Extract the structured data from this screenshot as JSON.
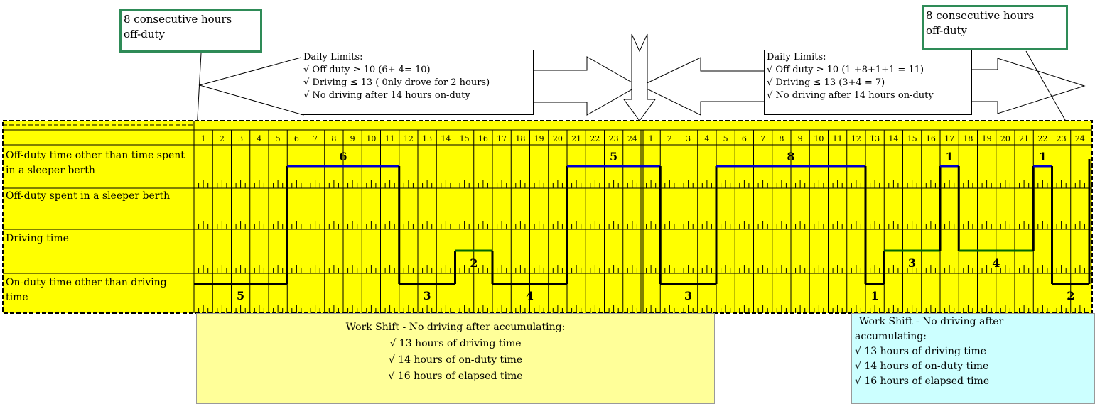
{
  "callouts": {
    "left": {
      "line1": "8 consecutive hours",
      "line2": "off-duty"
    },
    "right": {
      "line1": "8 consecutive hours",
      "line2": "off-duty"
    }
  },
  "limits_left": {
    "title": "Daily Limits:",
    "items": [
      "√ Off-duty ≥ 10 (6+ 4= 10)",
      "√ Driving ≤ 13 ( 0nly drove for 2 hours)",
      "√ No driving after 14 hours on-duty"
    ]
  },
  "limits_right": {
    "title": "Daily Limits:",
    "items": [
      "√ Off-duty ≥ 10 (1 +8+1+1 = 11)",
      "√ Driving ≤ 13 (3+4 = 7)",
      "√ No driving after 14 hours on-duty"
    ]
  },
  "rows": {
    "r1": "Off-duty time other than time spent in a sleeper berth",
    "r2": "Off-duty spent in a sleeper berth",
    "r3": "Driving time",
    "r4": "On-duty time other than driving time"
  },
  "hours": [
    "1",
    "2",
    "3",
    "4",
    "5",
    "6",
    "7",
    "8",
    "9",
    "10",
    "11",
    "12",
    "13",
    "14",
    "15",
    "16",
    "17",
    "18",
    "19",
    "20",
    "21",
    "22",
    "23",
    "24"
  ],
  "segments": [
    {
      "status": "on_duty",
      "start": 0,
      "end": 5,
      "label": "5"
    },
    {
      "status": "off_duty",
      "start": 5,
      "end": 11,
      "label": "6"
    },
    {
      "status": "on_duty",
      "start": 11,
      "end": 14,
      "label": "3"
    },
    {
      "status": "driving",
      "start": 14,
      "end": 16,
      "label": "2"
    },
    {
      "status": "on_duty",
      "start": 16,
      "end": 20,
      "label": "4"
    },
    {
      "status": "off_duty",
      "start": 20,
      "end": 25,
      "label": "5"
    },
    {
      "status": "on_duty",
      "start": 25,
      "end": 28,
      "label": "3"
    },
    {
      "status": "off_duty",
      "start": 28,
      "end": 36,
      "label": "8"
    },
    {
      "status": "on_duty",
      "start": 36,
      "end": 37,
      "label": "1"
    },
    {
      "status": "driving",
      "start": 37,
      "end": 40,
      "label": "3"
    },
    {
      "status": "off_duty",
      "start": 40,
      "end": 41,
      "label": "1"
    },
    {
      "status": "driving",
      "start": 41,
      "end": 45,
      "label": "4"
    },
    {
      "status": "off_duty",
      "start": 45,
      "end": 46,
      "label": "1"
    },
    {
      "status": "on_duty",
      "start": 46,
      "end": 48,
      "label": "2"
    }
  ],
  "work_shift_left": {
    "title": "Work Shift - No driving after accumulating:",
    "items": [
      "√  13 hours of driving time",
      "√  14 hours of on-duty time",
      "√  16 hours of elapsed time"
    ]
  },
  "work_shift_right": {
    "title_line1": "Work Shift -  No driving after",
    "title_line2": "accumulating:",
    "items": [
      "√  13 hours of driving time",
      "√  14 hours of on-duty time",
      "√  16 hours of elapsed time"
    ]
  },
  "colors": {
    "grid_bg": "#ffff00",
    "shift_left_bg": "#ffff99",
    "shift_right_bg": "#ccffff",
    "callout_border": "#2e8b57",
    "off_duty_line": "#0000cc",
    "driving_line": "#006600",
    "on_duty_line": "#000000"
  }
}
